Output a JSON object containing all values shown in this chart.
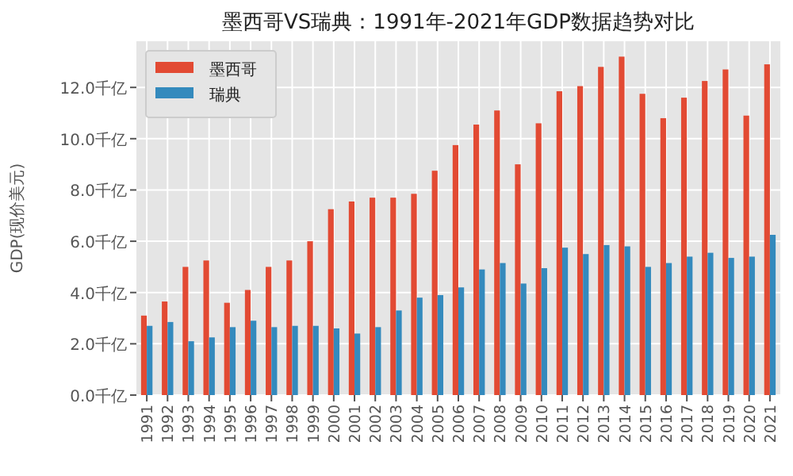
{
  "chart_data": {
    "type": "bar",
    "title": "墨西哥VS瑞典：1991年-2021年GDP数据趋势对比",
    "ylabel": "GDP(现价美元)",
    "categories": [
      "1991",
      "1992",
      "1993",
      "1994",
      "1995",
      "1996",
      "1997",
      "1998",
      "1999",
      "2000",
      "2001",
      "2002",
      "2003",
      "2004",
      "2005",
      "2006",
      "2007",
      "2008",
      "2009",
      "2010",
      "2011",
      "2012",
      "2013",
      "2014",
      "2015",
      "2016",
      "2017",
      "2018",
      "2019",
      "2020",
      "2021"
    ],
    "series": [
      {
        "name": "墨西哥",
        "color": "#e24a33",
        "values": [
          3.1,
          3.65,
          5.0,
          5.25,
          3.6,
          4.1,
          5.0,
          5.25,
          6.0,
          7.25,
          7.55,
          7.7,
          7.7,
          7.85,
          8.75,
          9.75,
          10.55,
          11.1,
          9.0,
          10.6,
          11.85,
          12.05,
          12.8,
          13.2,
          11.75,
          10.8,
          11.6,
          12.25,
          12.7,
          10.9,
          12.9
        ]
      },
      {
        "name": "瑞典",
        "color": "#348abd",
        "values": [
          2.7,
          2.85,
          2.1,
          2.25,
          2.65,
          2.9,
          2.65,
          2.7,
          2.7,
          2.6,
          2.4,
          2.65,
          3.3,
          3.8,
          3.9,
          4.2,
          4.9,
          5.15,
          4.35,
          4.95,
          5.75,
          5.5,
          5.85,
          5.8,
          5.0,
          5.15,
          5.4,
          5.55,
          5.35,
          5.4,
          6.25
        ]
      }
    ],
    "ylim": [
      0,
      13.8
    ],
    "yticks": [
      {
        "value": 0,
        "label": "0.0千亿"
      },
      {
        "value": 2,
        "label": "2.0千亿"
      },
      {
        "value": 4,
        "label": "4.0千亿"
      },
      {
        "value": 6,
        "label": "6.0千亿"
      },
      {
        "value": 8,
        "label": "8.0千亿"
      },
      {
        "value": 10,
        "label": "10.0千亿"
      },
      {
        "value": 12,
        "label": "12.0千亿"
      }
    ],
    "grid": true,
    "legend": "top left"
  }
}
